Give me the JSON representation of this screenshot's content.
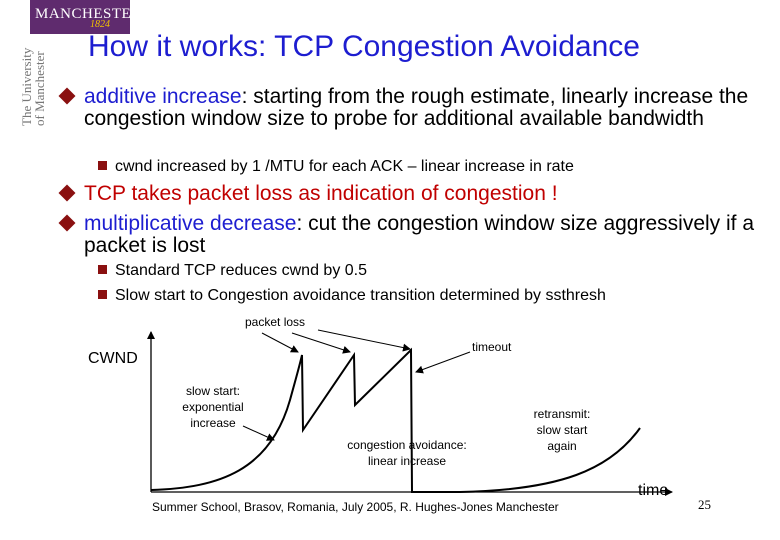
{
  "logo": {
    "name": "MANCHESTER",
    "year": "1824"
  },
  "vertical_brand": [
    "The University",
    "of Manchester"
  ],
  "title": "How it works: TCP Congestion Avoidance",
  "bullets": {
    "b1_term": "additive increase",
    "b1_rest": ": starting from the rough estimate, linearly increase the congestion window size to probe for additional available bandwidth",
    "b1_sub": "cwnd increased by 1 /MTU for each ACK – linear increase in rate",
    "b2": "TCP takes packet loss as indication of congestion !",
    "b3_term": "multiplicative decrease",
    "b3_rest": ": cut the congestion window size aggressively if a packet is lost",
    "b3_sub1": "Standard TCP reduces cwnd by 0.5",
    "b3_sub2": "Slow start to Congestion avoidance transition determined by ssthresh"
  },
  "diagram": {
    "packet_loss": "packet loss",
    "timeout": "timeout",
    "cwnd": "CWND",
    "slow_start_1": "slow start:",
    "slow_start_2": "exponential",
    "slow_start_3": "increase",
    "ca_1": "congestion avoidance:",
    "ca_2": "linear increase",
    "rt_1": "retransmit:",
    "rt_2": "slow start",
    "rt_3": "again",
    "time": "time"
  },
  "footer": "Summer School, Brasov, Romania, July 2005,  R. Hughes-Jones  Manchester",
  "page_number": "25",
  "colors": {
    "title": "#1d1dd0",
    "accent": "#8a1010",
    "red": "#c00000",
    "logo_bg": "#5f2b6e"
  }
}
